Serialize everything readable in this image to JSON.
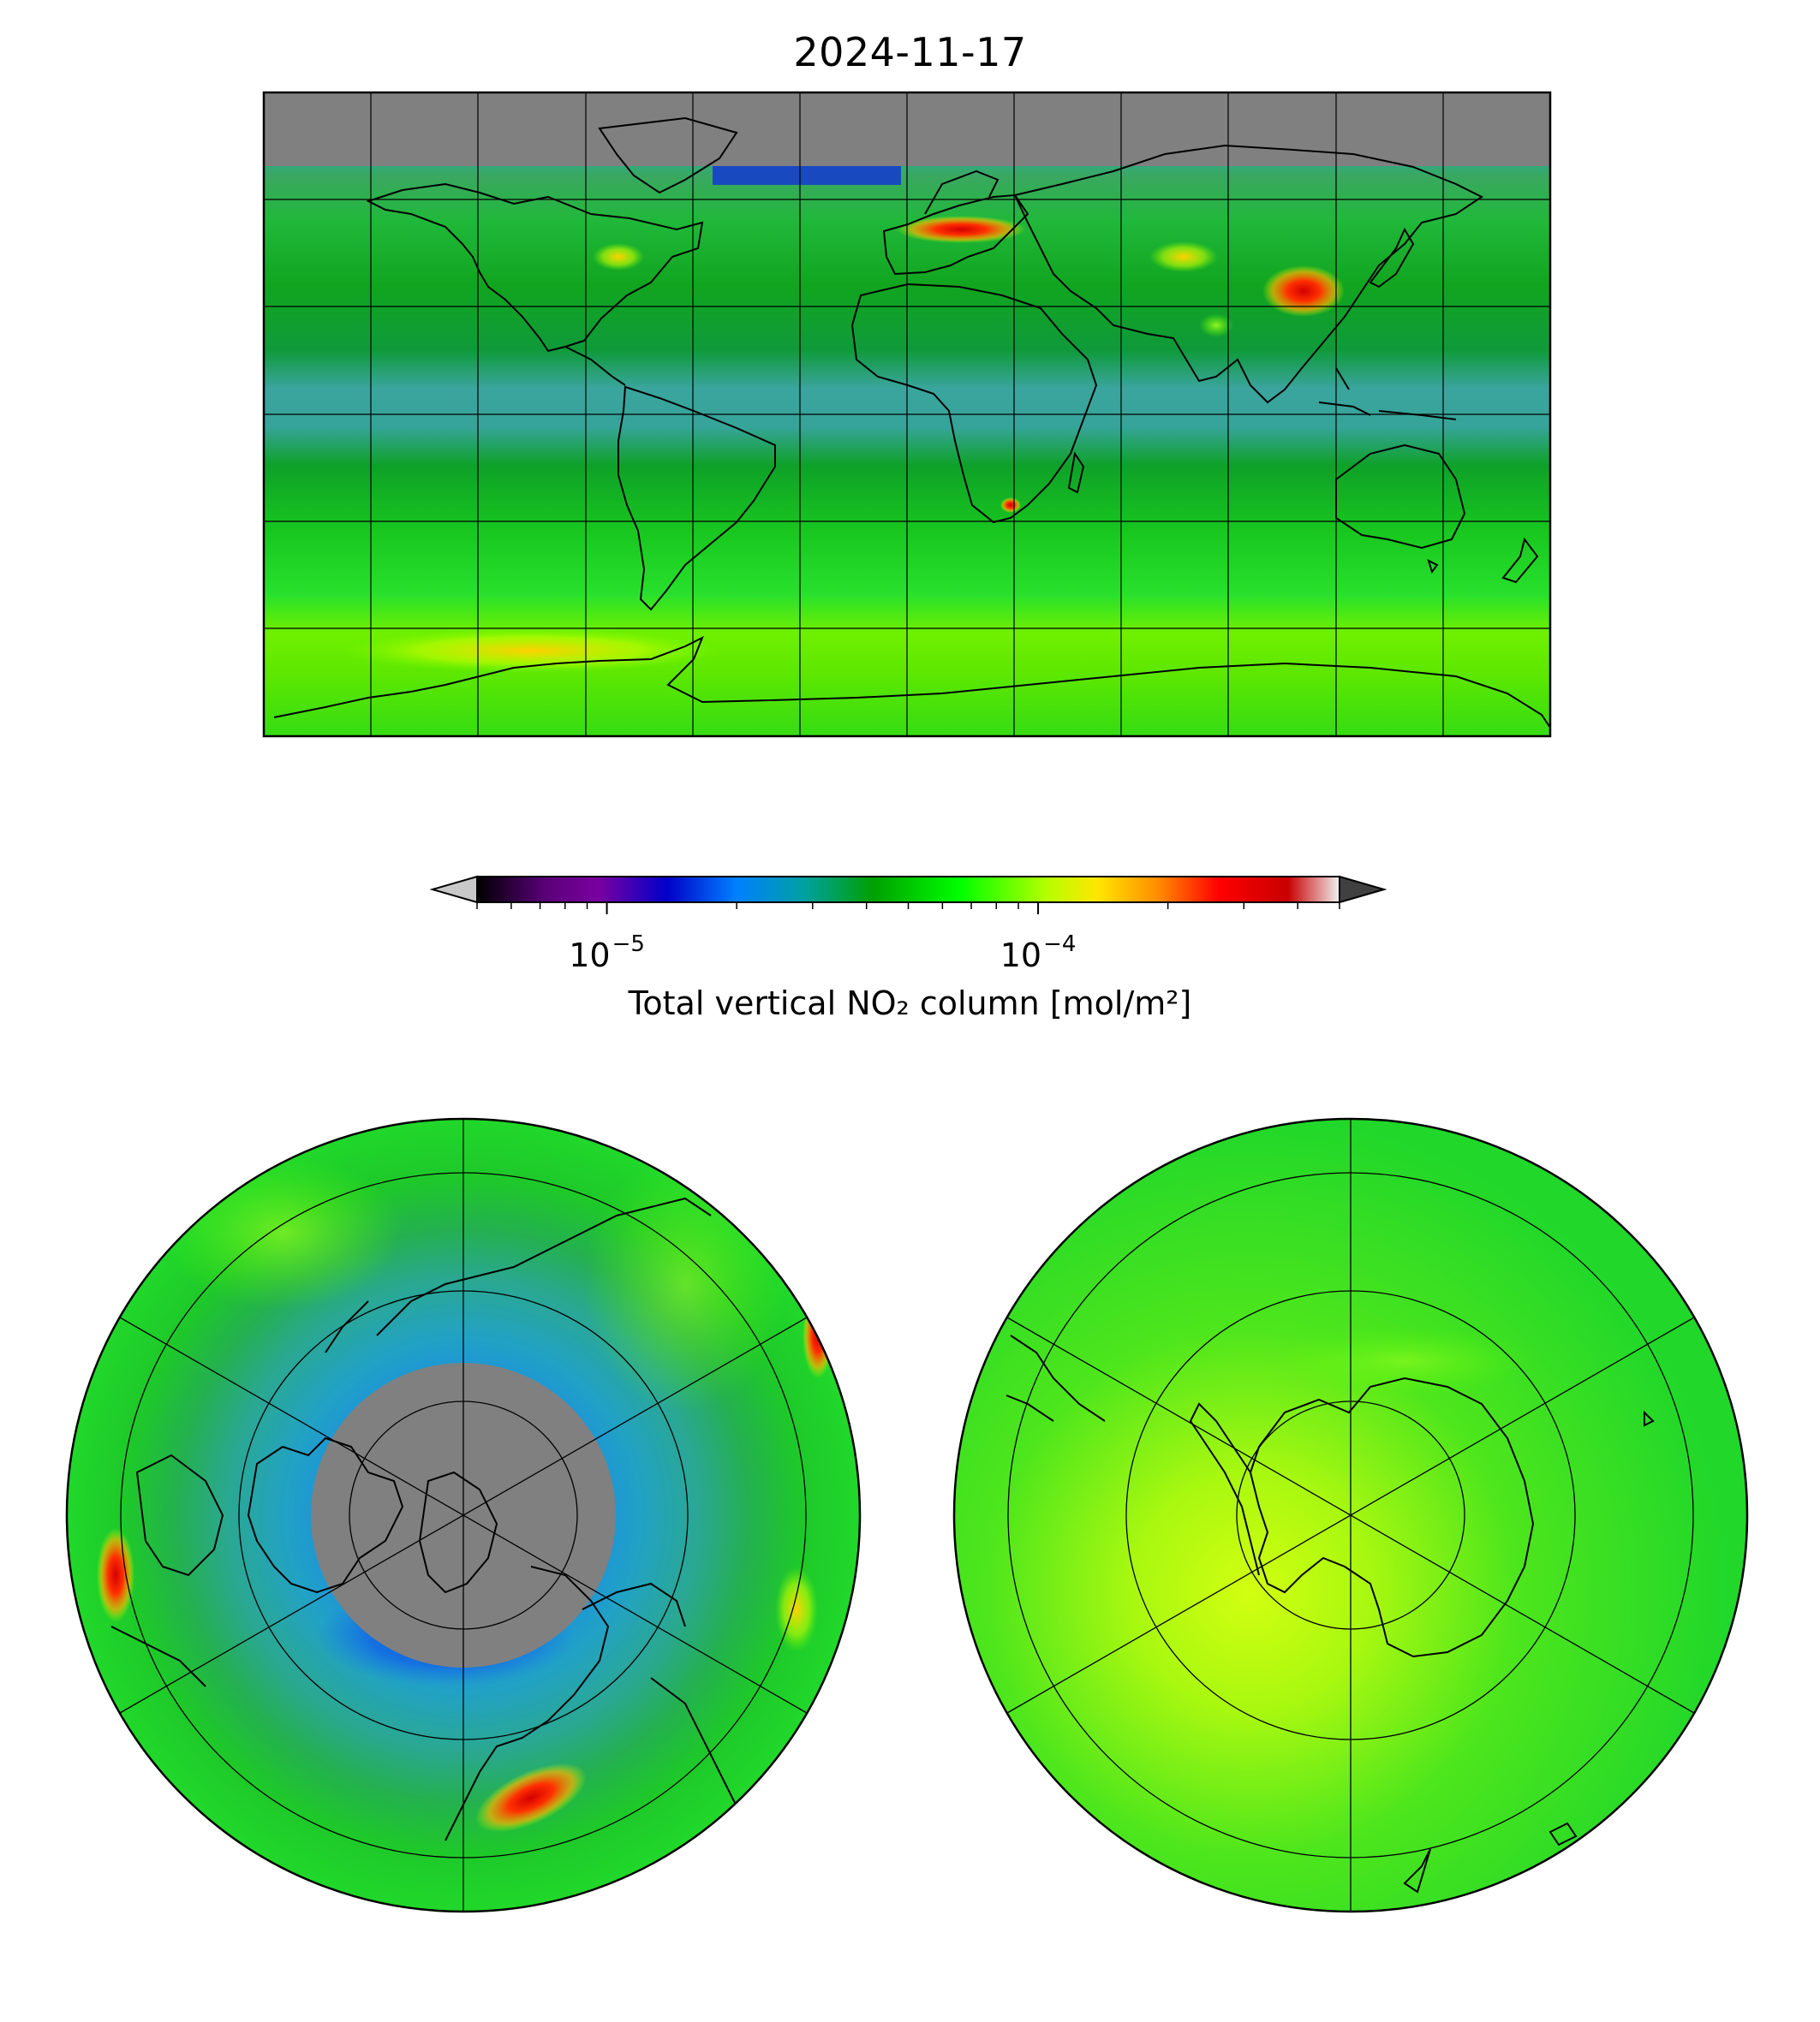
{
  "title": "2024-11-17",
  "colorbar": {
    "label": "Total vertical NO₂ column [mol/m²]",
    "scale": "log",
    "range": [
      5e-06,
      0.0005
    ],
    "extend": "both",
    "major_ticks": [
      {
        "value": 1e-05,
        "base": "10",
        "exponent": "−5"
      },
      {
        "value": 0.0001,
        "base": "10",
        "exponent": "−4"
      }
    ],
    "colormap": [
      "#000000",
      "#7a00a0",
      "#0000c8",
      "#0080ff",
      "#00a0a0",
      "#00a000",
      "#00ff00",
      "#b4ff00",
      "#ffe600",
      "#ff8c00",
      "#ff0000",
      "#c80000",
      "#f0f0f0"
    ],
    "under_color": "#c8c8c8",
    "over_color": "#404040"
  },
  "maps": [
    {
      "projection": "plate-carree",
      "region": "global",
      "gridlines": "30° spacing",
      "no_data_color": "#808080"
    },
    {
      "projection": "north-polar-stereographic",
      "region": "northern hemisphere",
      "gridlines": "rings every 20° latitude, 6 meridians",
      "no_data_color": "#808080"
    },
    {
      "projection": "south-polar-stereographic",
      "region": "southern hemisphere",
      "gridlines": "rings every 20° latitude, 6 meridians"
    }
  ]
}
